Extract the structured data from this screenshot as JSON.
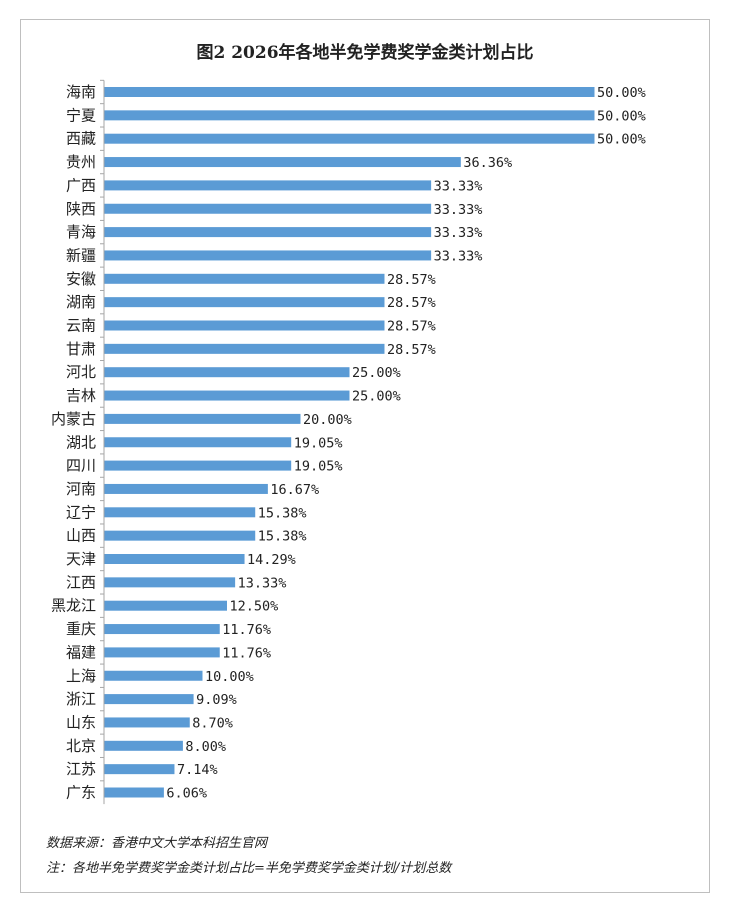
{
  "chart_data": {
    "type": "bar",
    "orientation": "horizontal",
    "title": "图2  2026年各地半免学费奖学金类计划占比",
    "categories": [
      "海南",
      "宁夏",
      "西藏",
      "贵州",
      "广西",
      "陕西",
      "青海",
      "新疆",
      "安徽",
      "湖南",
      "云南",
      "甘肃",
      "河北",
      "吉林",
      "内蒙古",
      "湖北",
      "四川",
      "河南",
      "辽宁",
      "山西",
      "天津",
      "江西",
      "黑龙江",
      "重庆",
      "福建",
      "上海",
      "浙江",
      "山东",
      "北京",
      "江苏",
      "广东"
    ],
    "values": [
      50.0,
      50.0,
      50.0,
      36.36,
      33.33,
      33.33,
      33.33,
      33.33,
      28.57,
      28.57,
      28.57,
      28.57,
      25.0,
      25.0,
      20.0,
      19.05,
      19.05,
      16.67,
      15.38,
      15.38,
      14.29,
      13.33,
      12.5,
      11.76,
      11.76,
      10.0,
      9.09,
      8.7,
      8.0,
      7.14,
      6.06
    ],
    "value_labels": [
      "50.00%",
      "50.00%",
      "50.00%",
      "36.36%",
      "33.33%",
      "33.33%",
      "33.33%",
      "33.33%",
      "28.57%",
      "28.57%",
      "28.57%",
      "28.57%",
      "25.00%",
      "25.00%",
      "20.00%",
      "19.05%",
      "19.05%",
      "16.67%",
      "15.38%",
      "15.38%",
      "14.29%",
      "13.33%",
      "12.50%",
      "11.76%",
      "11.76%",
      "10.00%",
      "9.09%",
      "8.70%",
      "8.00%",
      "7.14%",
      "6.06%"
    ],
    "xlim": [
      0,
      50
    ],
    "xlabel": "",
    "ylabel": "",
    "grid": false,
    "legend": "none",
    "bar_color": "#5b9bd5"
  },
  "footnotes": {
    "source": "数据来源：香港中文大学本科招生官网",
    "note": "注：各地半免学费奖学金类计划占比=半免学费奖学金类计划/计划总数"
  },
  "colors": {
    "bar": "#5b9bd5",
    "axis": "#a6a6a6",
    "text": "#222222"
  }
}
